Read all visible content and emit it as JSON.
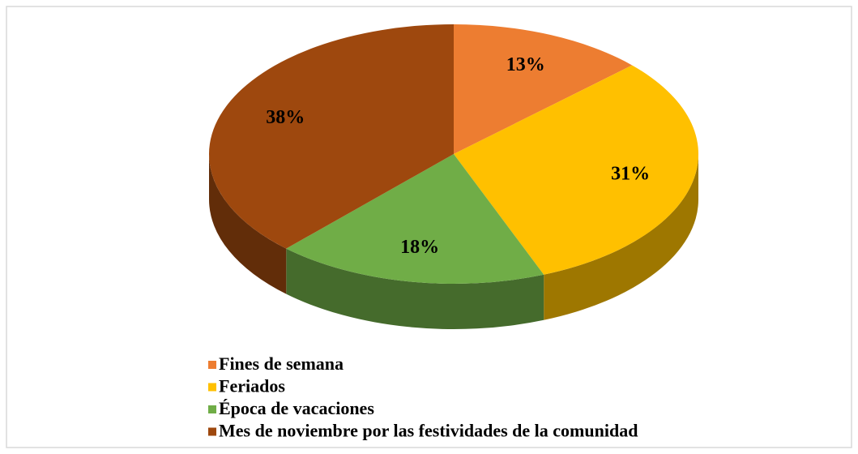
{
  "chart_data": {
    "type": "pie",
    "categories": [
      "Fines de semana",
      "Feriados",
      "Época de vacaciones",
      "Mes de noviembre por las festividades de la comunidad"
    ],
    "values": [
      13,
      31,
      18,
      38
    ],
    "value_labels": [
      "13%",
      "31%",
      "18%",
      "38%"
    ],
    "colors": [
      "#ED7D31",
      "#FFC000",
      "#70AD47",
      "#9E480E"
    ],
    "legend": "bottom-left"
  }
}
